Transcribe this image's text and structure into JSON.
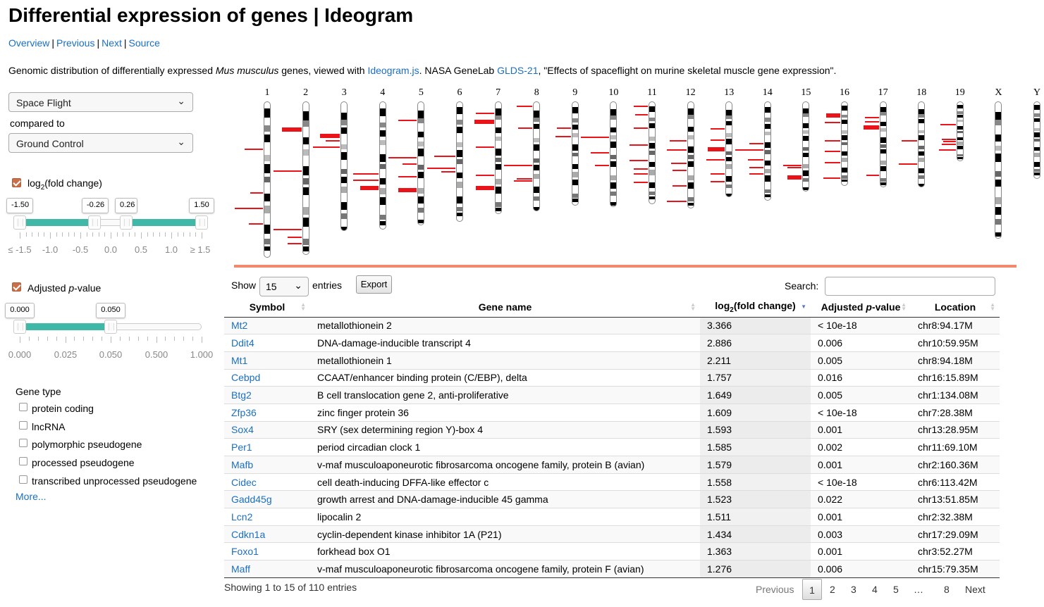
{
  "page": {
    "title": "Differential expression of genes | Ideogram",
    "nav": [
      "Overview",
      "Previous",
      "Next",
      "Source"
    ],
    "desc": {
      "pre": "Genomic distribution of differentially expressed ",
      "species": "Mus musculus",
      "mid": " genes, viewed with ",
      "ideo_link": "Ideogram.js",
      "mid2": ". NASA GeneLab ",
      "glds_link": "GLDS-21",
      "post": ", \"Effects of spaceflight on murine skeletal muscle gene expression\"."
    }
  },
  "sidebar": {
    "condition": "Space Flight",
    "compared_to": "compared to",
    "control": "Ground Control",
    "fold": {
      "label_pre": "log",
      "label_sub": "2",
      "label_post": "(fold change)",
      "checked": true,
      "handles": [
        "-1.50",
        "-0.26",
        "0.26",
        "1.50"
      ],
      "tick_labels": [
        "≤ -1.5",
        "-1.0",
        "-0.5",
        "0.0",
        "0.5",
        "1.0",
        "≥ 1.5"
      ]
    },
    "pval": {
      "label_pre": "Adjusted ",
      "label_p": "p",
      "label_post": "-value",
      "checked": true,
      "handles": [
        "0.000",
        "0.050"
      ],
      "tick_labels": [
        "0.000",
        "0.025",
        "0.050",
        "0.500",
        "1.000"
      ]
    },
    "gene_type": {
      "title": "Gene type",
      "options": [
        "protein coding",
        "lncRNA",
        "polymorphic pseudogene",
        "processed pseudogene",
        "transcribed unprocessed pseudogene"
      ],
      "more": "More..."
    }
  },
  "ideogram": {
    "chromosomes": [
      "1",
      "2",
      "3",
      "4",
      "5",
      "6",
      "7",
      "8",
      "9",
      "10",
      "11",
      "12",
      "13",
      "14",
      "15",
      "16",
      "17",
      "18",
      "19",
      "X",
      "Y"
    ]
  },
  "table": {
    "show": "Show",
    "length": "15",
    "entries": "entries",
    "export": "Export",
    "search": "Search:",
    "headers": {
      "symbol": "Symbol",
      "gene_name": "Gene name",
      "fold_pre": "log",
      "fold_sub": "2",
      "fold_post": "(fold change)",
      "pval_pre": "Adjusted ",
      "pval_p": "p",
      "pval_post": "-value",
      "location": "Location"
    },
    "rows": [
      [
        "Mt2",
        "metallothionein 2",
        "3.366",
        "< 10e-18",
        "chr8:94.17M"
      ],
      [
        "Ddit4",
        "DNA-damage-inducible transcript 4",
        "2.886",
        "0.006",
        "chr10:59.95M"
      ],
      [
        "Mt1",
        "metallothionein 1",
        "2.211",
        "0.005",
        "chr8:94.18M"
      ],
      [
        "Cebpd",
        "CCAAT/enhancer binding protein (C/EBP), delta",
        "1.757",
        "0.016",
        "chr16:15.89M"
      ],
      [
        "Btg2",
        "B cell translocation gene 2, anti-proliferative",
        "1.649",
        "0.005",
        "chr1:134.08M"
      ],
      [
        "Zfp36",
        "zinc finger protein 36",
        "1.609",
        "< 10e-18",
        "chr7:28.38M"
      ],
      [
        "Sox4",
        "SRY (sex determining region Y)-box 4",
        "1.593",
        "0.001",
        "chr13:28.95M"
      ],
      [
        "Per1",
        "period circadian clock 1",
        "1.585",
        "0.002",
        "chr11:69.10M"
      ],
      [
        "Mafb",
        "v-maf musculoaponeurotic fibrosarcoma oncogene family, protein B (avian)",
        "1.579",
        "0.001",
        "chr2:160.36M"
      ],
      [
        "Cidec",
        "cell death-inducing DFFA-like effector c",
        "1.558",
        "< 10e-18",
        "chr6:113.42M"
      ],
      [
        "Gadd45g",
        "growth arrest and DNA-damage-inducible 45 gamma",
        "1.523",
        "0.022",
        "chr13:51.85M"
      ],
      [
        "Lcn2",
        "lipocalin 2",
        "1.511",
        "0.001",
        "chr2:32.38M"
      ],
      [
        "Cdkn1a",
        "cyclin-dependent kinase inhibitor 1A (P21)",
        "1.434",
        "0.003",
        "chr17:29.09M"
      ],
      [
        "Foxo1",
        "forkhead box O1",
        "1.363",
        "0.001",
        "chr3:52.27M"
      ],
      [
        "Maff",
        "v-maf musculoaponeurotic fibrosarcoma oncogene family, protein F (avian)",
        "1.276",
        "0.006",
        "chr15:79.35M"
      ]
    ],
    "info": "Showing 1 to 15 of 110 entries",
    "pager": [
      "Previous",
      "1",
      "2",
      "3",
      "4",
      "5",
      "…",
      "8",
      "Next"
    ]
  }
}
